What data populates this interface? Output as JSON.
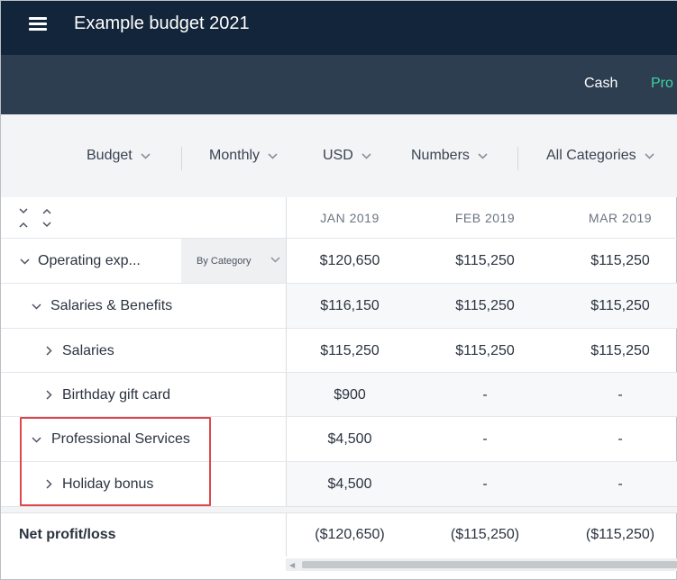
{
  "app": {
    "title": "Example budget 2021"
  },
  "nav": {
    "tabs": [
      "Cash",
      "Pro"
    ]
  },
  "filters": [
    "Budget",
    "Monthly",
    "USD",
    "Numbers",
    "All Categories"
  ],
  "table": {
    "columns": [
      "JAN 2019",
      "FEB 2019",
      "MAR 2019"
    ],
    "group_by": "By Category",
    "rows": [
      {
        "label": "Operating exp...",
        "expanded": true,
        "values": [
          "$120,650",
          "$115,250",
          "$115,250"
        ]
      },
      {
        "label": "Salaries & Benefits",
        "expanded": true,
        "values": [
          "$116,150",
          "$115,250",
          "$115,250"
        ]
      },
      {
        "label": "Salaries",
        "expanded": false,
        "values": [
          "$115,250",
          "$115,250",
          "$115,250"
        ]
      },
      {
        "label": "Birthday gift card",
        "expanded": false,
        "values": [
          "$900",
          "-",
          "-"
        ]
      },
      {
        "label": "Professional Services",
        "expanded": true,
        "values": [
          "$4,500",
          "-",
          "-"
        ]
      },
      {
        "label": "Holiday bonus",
        "expanded": false,
        "values": [
          "$4,500",
          "-",
          "-"
        ]
      }
    ],
    "total": {
      "label": "Net profit/loss",
      "values": [
        "($120,650)",
        "($115,250)",
        "($115,250)"
      ]
    }
  },
  "colors": {
    "header_bg": "#13253a",
    "nav_bg": "#2d3e51",
    "accent": "#3fd3a0",
    "highlight": "#e0474c"
  }
}
